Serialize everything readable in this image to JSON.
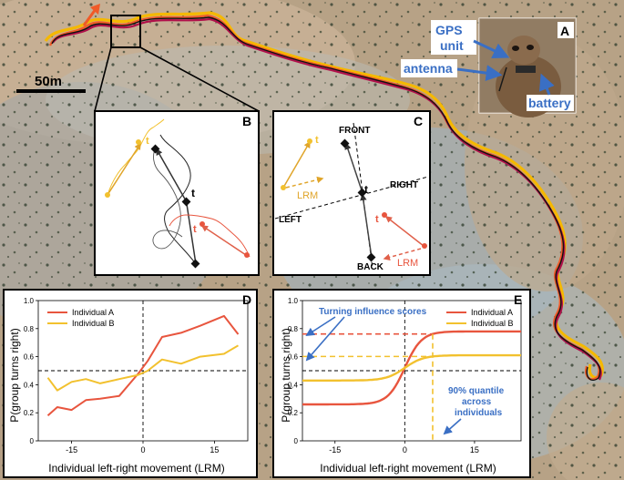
{
  "map": {
    "scale_label": "50m",
    "colors": {
      "track_black": "#111111",
      "track_red": "#c0182e",
      "track_orange": "#f05a28",
      "track_yellow": "#f5b800",
      "track_magenta": "#b0104a"
    }
  },
  "photo_panel": {
    "letter": "A",
    "labels": {
      "gps": "GPS\nunit",
      "gps_line1": "GPS",
      "gps_line2": "unit",
      "antenna": "antenna",
      "battery": "battery"
    },
    "label_color": "#3a6fc4"
  },
  "panel_b": {
    "letter": "B",
    "focal": "t",
    "yellow_marker": "t",
    "red_marker": "t"
  },
  "panel_c": {
    "letter": "C",
    "front": "FRONT",
    "right": "RIGHT",
    "left": "LEFT",
    "back": "BACK",
    "lrm_yellow": "LRM",
    "lrm_red": "LRM",
    "focal": "t",
    "yellow_marker": "t",
    "red_marker": "t"
  },
  "panel_d": {
    "letter": "D",
    "chart_data": {
      "type": "line",
      "xlabel": "Individual left-right movement (LRM)",
      "ylabel": "P(group turns right)",
      "xlim": [
        -22,
        22
      ],
      "ylim": [
        0,
        1.0
      ],
      "xticks": [
        -15,
        0,
        15
      ],
      "yticks": [
        0,
        0.2,
        0.4,
        0.6,
        0.8,
        1.0
      ],
      "ytick_labels": [
        "0",
        "0.2",
        "0.4",
        "0.6",
        "0.8",
        "1.0"
      ],
      "hline": 0.5,
      "vline": 0,
      "legend_position": "top-left",
      "series": [
        {
          "name": "Individual A",
          "color": "#e8553e",
          "x": [
            -20,
            -18,
            -15,
            -12,
            -9,
            -5,
            -1,
            1,
            4,
            8,
            12,
            17,
            20
          ],
          "y": [
            0.18,
            0.24,
            0.22,
            0.29,
            0.3,
            0.32,
            0.48,
            0.57,
            0.74,
            0.77,
            0.82,
            0.89,
            0.76
          ]
        },
        {
          "name": "Individual B",
          "color": "#f2c12e",
          "x": [
            -20,
            -18,
            -15,
            -12,
            -9,
            -5,
            -1,
            1,
            4,
            8,
            12,
            17,
            20
          ],
          "y": [
            0.45,
            0.36,
            0.42,
            0.44,
            0.41,
            0.44,
            0.47,
            0.5,
            0.58,
            0.55,
            0.6,
            0.62,
            0.68
          ]
        }
      ]
    }
  },
  "panel_e": {
    "letter": "E",
    "annot_scores": "Turning influence scores",
    "annot_quantile_1": "90% quantile",
    "annot_quantile_2": "across",
    "annot_quantile_3": "individuals",
    "annot_color": "#3a6fc4",
    "chart_data": {
      "type": "line",
      "xlabel": "Individual left-right movement (LRM)",
      "ylabel": "P(group turns right)",
      "xlim": [
        -22,
        25
      ],
      "ylim": [
        0,
        1.0
      ],
      "xticks": [
        -15,
        0,
        15
      ],
      "yticks": [
        0,
        0.2,
        0.4,
        0.6,
        0.8,
        1.0
      ],
      "ytick_labels": [
        "0",
        "0.2",
        "0.4",
        "0.6",
        "0.8",
        "1.0"
      ],
      "hline": 0.5,
      "vline": 0,
      "quantile_x": 6,
      "legend_position": "top-right",
      "series": [
        {
          "name": "Individual A",
          "color": "#e8553e",
          "low": 0.26,
          "high": 0.78,
          "k": 0.55
        },
        {
          "name": "Individual B",
          "color": "#f2c12e",
          "low": 0.43,
          "high": 0.61,
          "k": 0.5
        }
      ]
    }
  }
}
